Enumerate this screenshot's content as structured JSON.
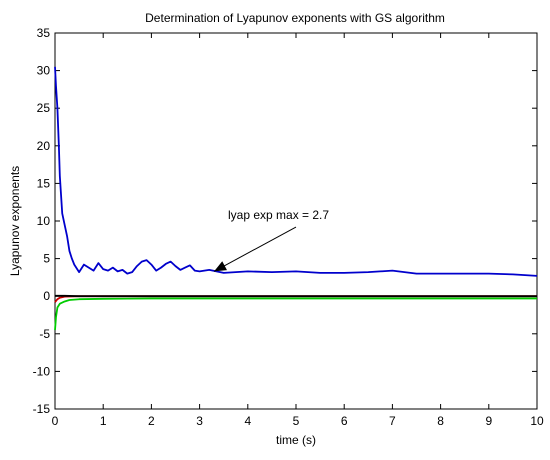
{
  "chart_data": {
    "type": "line",
    "title": "Determination of Lyapunov exponents with GS algorithm",
    "xlabel": "time (s)",
    "ylabel": "Lyapunov exponents",
    "xlim": [
      0,
      10
    ],
    "ylim": [
      -15,
      35
    ],
    "xticks": [
      "0",
      "1",
      "2",
      "3",
      "4",
      "5",
      "6",
      "7",
      "8",
      "9",
      "10"
    ],
    "yticks": [
      "-15",
      "-10",
      "-5",
      "0",
      "5",
      "10",
      "15",
      "20",
      "25",
      "30",
      "35"
    ],
    "grid": false,
    "series": [
      {
        "color": "#0000CC",
        "x": [
          0,
          0.02,
          0.05,
          0.08,
          0.1,
          0.15,
          0.2,
          0.25,
          0.3,
          0.35,
          0.4,
          0.5,
          0.6,
          0.7,
          0.8,
          0.9,
          1.0,
          1.1,
          1.2,
          1.3,
          1.4,
          1.5,
          1.6,
          1.7,
          1.8,
          1.9,
          2.0,
          2.1,
          2.2,
          2.3,
          2.4,
          2.5,
          2.6,
          2.7,
          2.8,
          2.9,
          3.0,
          3.2,
          3.5,
          4.0,
          4.5,
          5.0,
          5.5,
          6.0,
          6.5,
          7.0,
          7.5,
          8.0,
          8.5,
          9.0,
          9.5,
          10.0
        ],
        "y": [
          30.5,
          28,
          25,
          20,
          16,
          11,
          9.5,
          8,
          6,
          5,
          4.2,
          3.2,
          4.2,
          3.8,
          3.4,
          4.4,
          3.6,
          3.4,
          3.8,
          3.3,
          3.5,
          3.0,
          3.2,
          4.0,
          4.6,
          4.8,
          4.2,
          3.4,
          3.8,
          4.3,
          4.6,
          4.0,
          3.5,
          3.8,
          4.1,
          3.4,
          3.3,
          3.5,
          3.1,
          3.3,
          3.2,
          3.3,
          3.1,
          3.1,
          3.2,
          3.4,
          3.0,
          3.0,
          3.0,
          3.0,
          2.9,
          2.7
        ]
      },
      {
        "color": "#CC0000",
        "x": [
          0,
          0.05,
          0.1,
          0.2,
          0.5,
          1,
          2,
          5,
          10
        ],
        "y": [
          -0.8,
          -0.4,
          -0.2,
          -0.05,
          0.0,
          0.0,
          0.0,
          0.0,
          0.0
        ]
      },
      {
        "color": "#00CC00",
        "x": [
          0,
          0.02,
          0.05,
          0.1,
          0.2,
          0.3,
          0.5,
          1,
          2,
          5,
          10
        ],
        "y": [
          -4.5,
          -2.8,
          -1.5,
          -1.0,
          -0.7,
          -0.5,
          -0.4,
          -0.35,
          -0.3,
          -0.3,
          -0.3
        ]
      },
      {
        "color": "#000000",
        "x": [
          0,
          0.2,
          0.5,
          1,
          2,
          5,
          10
        ],
        "y": [
          0.05,
          0.05,
          0.0,
          0.0,
          0.0,
          0.0,
          0.0
        ]
      }
    ],
    "annotation": {
      "text": "lyap exp max = 2.7",
      "arrow_from": [
        5.0,
        9.2
      ],
      "arrow_to": [
        3.3,
        3.3
      ]
    }
  }
}
